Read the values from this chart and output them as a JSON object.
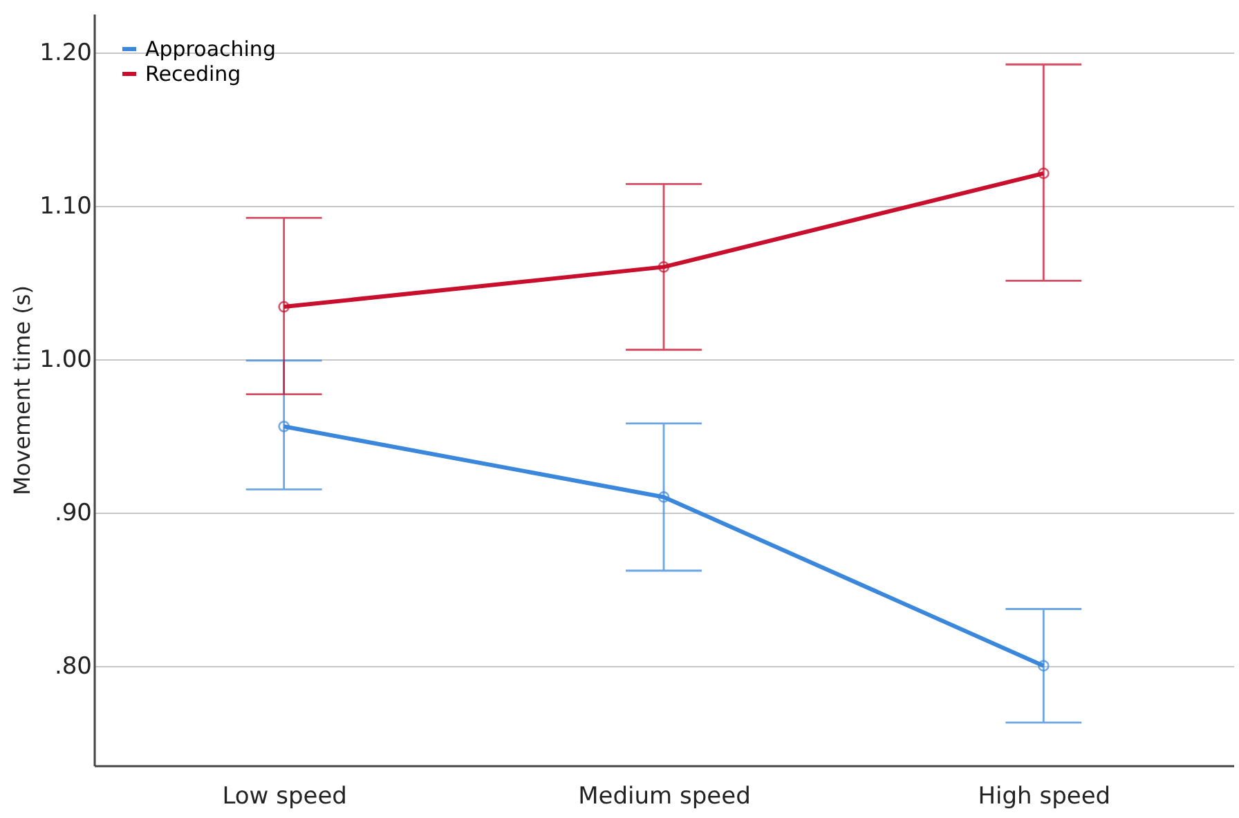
{
  "chart_data": {
    "type": "line",
    "ylabel": "Movement time (s)",
    "categories": [
      "Low speed",
      "Medium speed",
      "High speed"
    ],
    "series": [
      {
        "name": "Approaching",
        "color": "#3a87db",
        "values": [
          0.956,
          0.91,
          0.8
        ],
        "errors": [
          [
            0.915,
            0.999
          ],
          [
            0.862,
            0.958
          ],
          [
            0.763,
            0.837
          ]
        ]
      },
      {
        "name": "Receding",
        "color": "#c8102e",
        "values": [
          1.034,
          1.06,
          1.121
        ],
        "errors": [
          [
            0.977,
            1.092
          ],
          [
            1.006,
            1.114
          ],
          [
            1.051,
            1.192
          ]
        ]
      }
    ],
    "ylim": [
      0.735,
      1.225
    ],
    "yticks": [
      {
        "value": 0.8,
        "label": ".80"
      },
      {
        "value": 0.9,
        "label": ".90"
      },
      {
        "value": 1.0,
        "label": "1.00"
      },
      {
        "value": 1.1,
        "label": "1.10"
      },
      {
        "value": 1.2,
        "label": "1.20"
      }
    ],
    "grid": "y",
    "legend": "top left",
    "marker": "circle",
    "line_style": "solid"
  }
}
